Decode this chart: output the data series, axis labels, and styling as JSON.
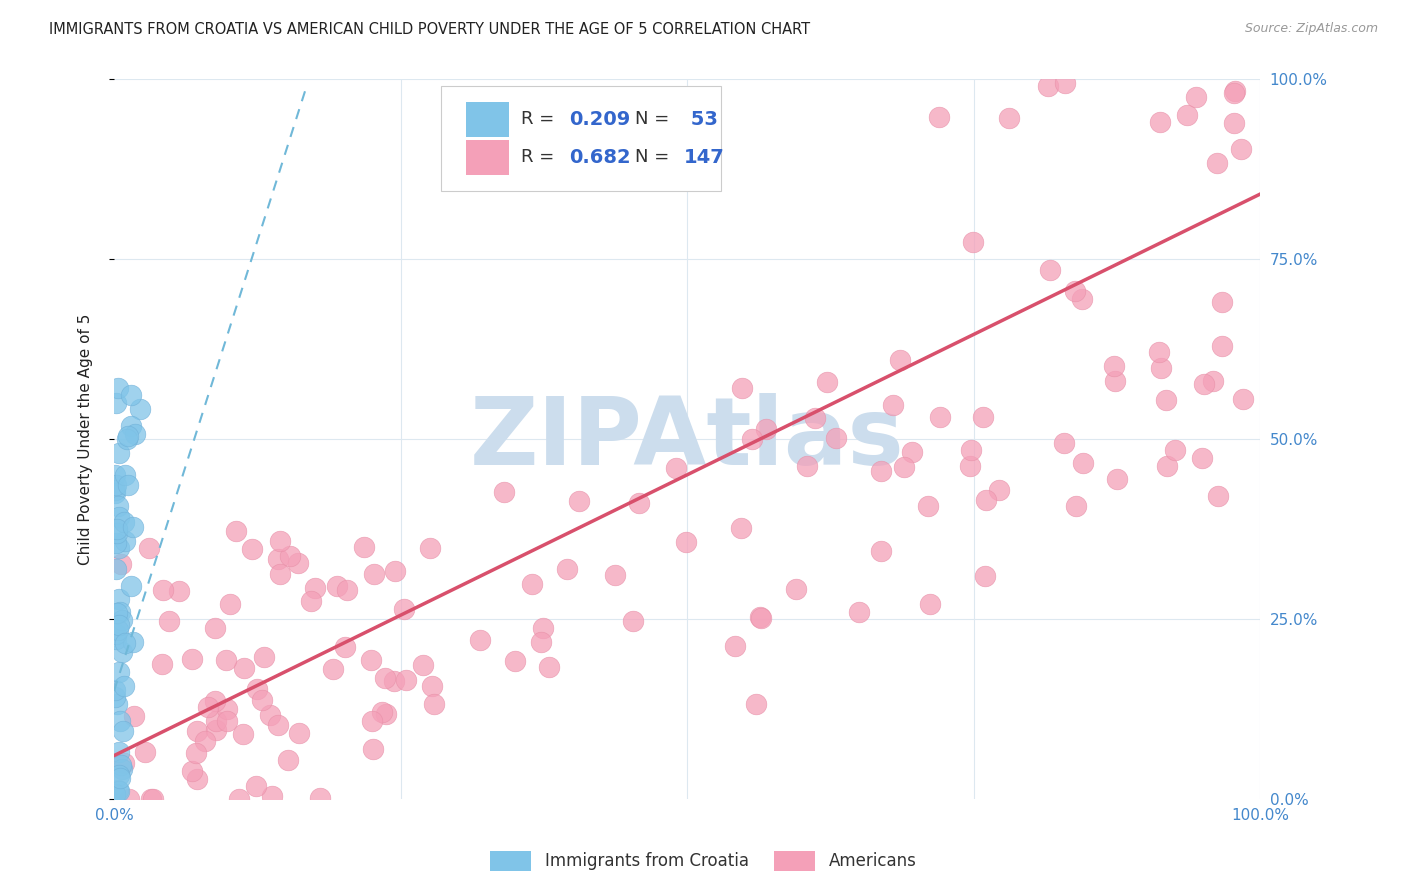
{
  "title": "IMMIGRANTS FROM CROATIA VS AMERICAN CHILD POVERTY UNDER THE AGE OF 5 CORRELATION CHART",
  "source": "Source: ZipAtlas.com",
  "ylabel": "Child Poverty Under the Age of 5",
  "yticks": [
    "0.0%",
    "25.0%",
    "50.0%",
    "75.0%",
    "100.0%"
  ],
  "ytick_vals": [
    0.0,
    0.25,
    0.5,
    0.75,
    1.0
  ],
  "blue_color": "#80c4e8",
  "pink_color": "#f4a0b8",
  "blue_edge_color": "#70b0d8",
  "pink_edge_color": "#e890a8",
  "blue_line_color": "#70b8d8",
  "pink_line_color": "#d8506c",
  "title_color": "#222222",
  "source_color": "#999999",
  "watermark_color": "#ccdded",
  "axis_label_color": "#4488cc",
  "grid_color": "#dde8f0",
  "background_color": "#ffffff",
  "legend_r_color": "#333333",
  "legend_val_color": "#3366cc"
}
